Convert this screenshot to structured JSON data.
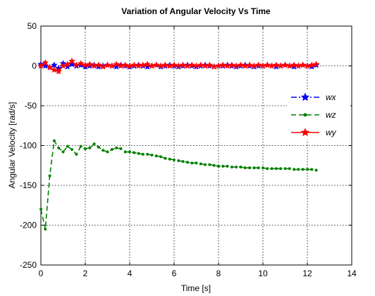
{
  "chart_data": {
    "type": "line",
    "title": "Variation of Angular Velocity Vs Time",
    "xlabel": "Time [s]",
    "ylabel": "Angular Velocity [rad/s]",
    "xlim": [
      0,
      14
    ],
    "ylim": [
      -250,
      50
    ],
    "xticks": [
      0,
      2,
      4,
      6,
      8,
      10,
      12,
      14
    ],
    "yticks": [
      -250,
      -200,
      -150,
      -100,
      -50,
      0,
      50
    ],
    "grid": true,
    "legend_position": "right",
    "x": [
      0.0,
      0.2,
      0.4,
      0.6,
      0.8,
      1.0,
      1.2,
      1.4,
      1.6,
      1.8,
      2.0,
      2.2,
      2.4,
      2.6,
      2.8,
      3.0,
      3.2,
      3.4,
      3.6,
      3.8,
      4.0,
      4.2,
      4.4,
      4.6,
      4.8,
      5.0,
      5.2,
      5.4,
      5.6,
      5.8,
      6.0,
      6.2,
      6.4,
      6.6,
      6.8,
      7.0,
      7.2,
      7.4,
      7.6,
      7.8,
      8.0,
      8.2,
      8.4,
      8.6,
      8.8,
      9.0,
      9.2,
      9.4,
      9.6,
      9.8,
      10.0,
      10.2,
      10.4,
      10.6,
      10.8,
      11.0,
      11.2,
      11.4,
      11.6,
      11.8,
      12.0,
      12.2,
      12.4
    ],
    "series": [
      {
        "name": "wx",
        "color": "#0000ff",
        "line_style": "dash-dot",
        "marker": "star",
        "values": [
          2,
          0,
          -2,
          1,
          -3,
          3,
          -1,
          2,
          0,
          1,
          -1,
          0,
          1,
          -1,
          0,
          1,
          0,
          -1,
          1,
          0,
          -1,
          0,
          1,
          0,
          -1,
          0,
          1,
          -1,
          0,
          1,
          0,
          -1,
          0,
          1,
          0,
          -1,
          0,
          1,
          0,
          -1,
          0,
          0,
          1,
          0,
          -1,
          0,
          1,
          0,
          -1,
          0,
          0,
          1,
          0,
          -1,
          0,
          1,
          0,
          -1,
          0,
          1,
          0,
          -1,
          1
        ]
      },
      {
        "name": "wz",
        "color": "#008000",
        "line_style": "dashed",
        "marker": "dot",
        "values": [
          -180,
          -205,
          -138,
          -94,
          -103,
          -108,
          -101,
          -105,
          -111,
          -101,
          -104,
          -103,
          -98,
          -102,
          -106,
          -108,
          -105,
          -103,
          -104,
          -108,
          -108,
          -109,
          -110,
          -111,
          -111,
          -112,
          -113,
          -114,
          -116,
          -117,
          -118,
          -119,
          -120,
          -121,
          -122,
          -122,
          -123,
          -124,
          -124,
          -125,
          -126,
          -126,
          -126,
          -127,
          -127,
          -127,
          -128,
          -128,
          -128,
          -128,
          -128,
          -129,
          -129,
          -129,
          -129,
          -129,
          -129,
          -130,
          -130,
          -130,
          -130,
          -130,
          -131
        ]
      },
      {
        "name": "wy",
        "color": "#ff0000",
        "line_style": "solid",
        "marker": "star",
        "values": [
          0,
          4,
          -2,
          -5,
          -7,
          0,
          2,
          6,
          1,
          3,
          1,
          2,
          0,
          1,
          -1,
          1,
          0,
          2,
          0,
          1,
          0,
          1,
          0,
          1,
          2,
          0,
          1,
          0,
          1,
          0,
          1,
          0,
          1,
          0,
          1,
          0,
          1,
          0,
          1,
          -1,
          0,
          1,
          0,
          1,
          0,
          1,
          0,
          1,
          0,
          1,
          0,
          1,
          0,
          1,
          0,
          1,
          0,
          1,
          0,
          1,
          0,
          1,
          2
        ]
      }
    ]
  }
}
